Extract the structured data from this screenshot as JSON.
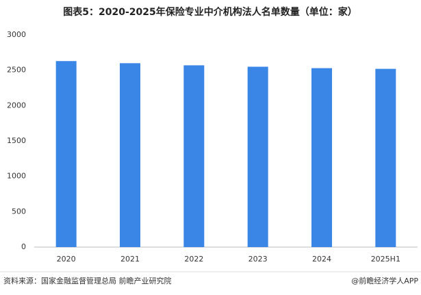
{
  "chart_data": {
    "type": "bar",
    "title": "图表5：2020-2025年保险专业中介机构法人名单数量（单位：家）",
    "categories": [
      "2020",
      "2021",
      "2022",
      "2023",
      "2024",
      "2025H1"
    ],
    "values": [
      2630,
      2600,
      2570,
      2550,
      2530,
      2520
    ],
    "color": "#3a86e6",
    "ylim": [
      0,
      3000
    ],
    "yticks": [
      0,
      500,
      1000,
      1500,
      2000,
      2500,
      3000
    ],
    "grid": false,
    "source": "资料来源：国家金融监督管理总局 前瞻产业研究院",
    "credit": "@前瞻经济学人APP"
  }
}
